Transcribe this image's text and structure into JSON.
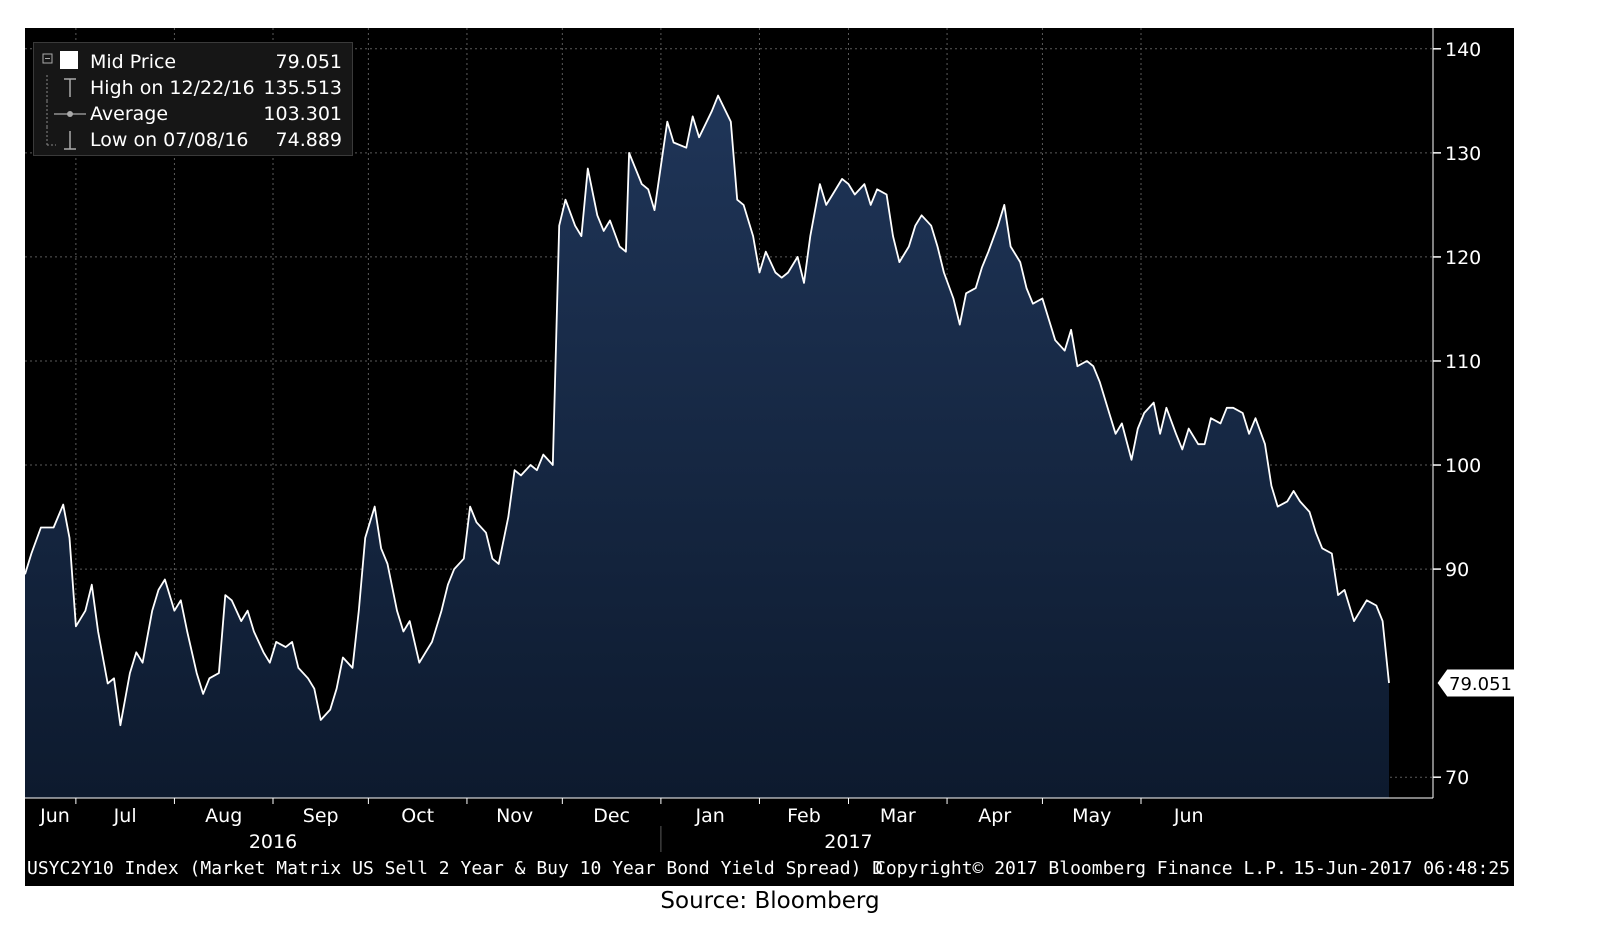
{
  "legend": {
    "items": [
      {
        "label": "Mid Price",
        "value": "79.051"
      },
      {
        "label": "High on 12/22/16",
        "value": "135.513"
      },
      {
        "label": "Average",
        "value": "103.301"
      },
      {
        "label": "Low on 07/08/16",
        "value": "74.889"
      }
    ]
  },
  "last_price_tag": "79.051",
  "footer": {
    "index_label": "USYC2Y10 Index (Market Matrix US Sell 2 Year & Buy 10 Year Bond Yield Spread)  D",
    "copyright": "Copyright© 2017 Bloomberg Finance L.P.",
    "timestamp": "15-Jun-2017 06:48:25"
  },
  "source": "Source: Bloomberg",
  "colors": {
    "background": "#000000",
    "area_fill_top": "#1f3558",
    "area_fill_bottom": "#0d1a2e",
    "line": "#ffffff",
    "grid": "#5a5a5a",
    "axis_text": "#ffffff"
  },
  "chart_data": {
    "type": "area",
    "title": "",
    "xlabel": "",
    "ylabel": "",
    "ylim": [
      68,
      142
    ],
    "y_ticks": [
      70,
      90,
      100,
      110,
      120,
      130,
      140
    ],
    "y_axis_side": "right",
    "grid": true,
    "months": [
      {
        "label": "Jun",
        "date": "2016-06-01"
      },
      {
        "label": "Jul",
        "date": "2016-07-01"
      },
      {
        "label": "Aug",
        "date": "2016-08-01"
      },
      {
        "label": "Sep",
        "date": "2016-09-01"
      },
      {
        "label": "Oct",
        "date": "2016-10-01"
      },
      {
        "label": "Nov",
        "date": "2016-11-01"
      },
      {
        "label": "Dec",
        "date": "2016-12-01"
      },
      {
        "label": "Jan",
        "date": "2017-01-01"
      },
      {
        "label": "Feb",
        "date": "2017-02-01"
      },
      {
        "label": "Mar",
        "date": "2017-03-01"
      },
      {
        "label": "Apr",
        "date": "2017-04-01"
      },
      {
        "label": "May",
        "date": "2017-05-01"
      },
      {
        "label": "Jun",
        "date": "2017-06-01"
      }
    ],
    "years": [
      {
        "label": "2016",
        "date": "2016-09-01"
      },
      {
        "label": "2017",
        "date": "2017-03-01"
      }
    ],
    "series": [
      {
        "points": [
          [
            "2016-06-15",
            89.5
          ],
          [
            "2016-06-17",
            91.5
          ],
          [
            "2016-06-20",
            94.0
          ],
          [
            "2016-06-22",
            94.0
          ],
          [
            "2016-06-24",
            94.0
          ],
          [
            "2016-06-27",
            96.2
          ],
          [
            "2016-06-29",
            93.0
          ],
          [
            "2016-07-01",
            84.5
          ],
          [
            "2016-07-04",
            86.0
          ],
          [
            "2016-07-06",
            88.5
          ],
          [
            "2016-07-08",
            84.0
          ],
          [
            "2016-07-11",
            79.0
          ],
          [
            "2016-07-13",
            79.5
          ],
          [
            "2016-07-15",
            75.0
          ],
          [
            "2016-07-18",
            80.0
          ],
          [
            "2016-07-20",
            82.0
          ],
          [
            "2016-07-22",
            81.0
          ],
          [
            "2016-07-25",
            86.0
          ],
          [
            "2016-07-27",
            88.0
          ],
          [
            "2016-07-29",
            89.0
          ],
          [
            "2016-08-01",
            86.0
          ],
          [
            "2016-08-03",
            87.0
          ],
          [
            "2016-08-05",
            84.0
          ],
          [
            "2016-08-08",
            80.0
          ],
          [
            "2016-08-10",
            78.0
          ],
          [
            "2016-08-12",
            79.5
          ],
          [
            "2016-08-15",
            80.0
          ],
          [
            "2016-08-17",
            87.5
          ],
          [
            "2016-08-19",
            87.0
          ],
          [
            "2016-08-22",
            85.0
          ],
          [
            "2016-08-24",
            86.0
          ],
          [
            "2016-08-26",
            84.0
          ],
          [
            "2016-08-29",
            82.0
          ],
          [
            "2016-08-31",
            81.0
          ],
          [
            "2016-09-02",
            83.0
          ],
          [
            "2016-09-05",
            82.5
          ],
          [
            "2016-09-07",
            83.0
          ],
          [
            "2016-09-09",
            80.5
          ],
          [
            "2016-09-12",
            79.5
          ],
          [
            "2016-09-14",
            78.5
          ],
          [
            "2016-09-16",
            75.5
          ],
          [
            "2016-09-19",
            76.5
          ],
          [
            "2016-09-21",
            78.5
          ],
          [
            "2016-09-23",
            81.5
          ],
          [
            "2016-09-26",
            80.5
          ],
          [
            "2016-09-28",
            86.0
          ],
          [
            "2016-09-30",
            93.0
          ],
          [
            "2016-10-03",
            96.0
          ],
          [
            "2016-10-05",
            92.0
          ],
          [
            "2016-10-07",
            90.5
          ],
          [
            "2016-10-10",
            86.0
          ],
          [
            "2016-10-12",
            84.0
          ],
          [
            "2016-10-14",
            85.0
          ],
          [
            "2016-10-17",
            81.0
          ],
          [
            "2016-10-19",
            82.0
          ],
          [
            "2016-10-21",
            83.0
          ],
          [
            "2016-10-24",
            86.0
          ],
          [
            "2016-10-26",
            88.5
          ],
          [
            "2016-10-28",
            90.0
          ],
          [
            "2016-10-31",
            91.0
          ],
          [
            "2016-11-02",
            96.0
          ],
          [
            "2016-11-04",
            94.5
          ],
          [
            "2016-11-07",
            93.5
          ],
          [
            "2016-11-09",
            91.0
          ],
          [
            "2016-11-11",
            90.5
          ],
          [
            "2016-11-14",
            95.0
          ],
          [
            "2016-11-16",
            99.5
          ],
          [
            "2016-11-18",
            99.0
          ],
          [
            "2016-11-21",
            100.0
          ],
          [
            "2016-11-23",
            99.5
          ],
          [
            "2016-11-25",
            101.0
          ],
          [
            "2016-11-28",
            100.0
          ],
          [
            "2016-11-30",
            123.0
          ],
          [
            "2016-12-02",
            125.5
          ],
          [
            "2016-12-05",
            123.0
          ],
          [
            "2016-12-07",
            122.0
          ],
          [
            "2016-12-09",
            128.5
          ],
          [
            "2016-12-12",
            124.0
          ],
          [
            "2016-12-14",
            122.5
          ],
          [
            "2016-12-16",
            123.5
          ],
          [
            "2016-12-19",
            121.0
          ],
          [
            "2016-12-21",
            120.5
          ],
          [
            "2016-12-22",
            130.0
          ],
          [
            "2016-12-26",
            127.0
          ],
          [
            "2016-12-28",
            126.5
          ],
          [
            "2016-12-30",
            124.5
          ],
          [
            "2017-01-03",
            133.0
          ],
          [
            "2017-01-05",
            131.0
          ],
          [
            "2017-01-09",
            130.5
          ],
          [
            "2017-01-11",
            133.5
          ],
          [
            "2017-01-13",
            131.5
          ],
          [
            "2017-01-17",
            134.0
          ],
          [
            "2017-01-19",
            135.5
          ],
          [
            "2017-01-23",
            133.0
          ],
          [
            "2017-01-25",
            125.5
          ],
          [
            "2017-01-27",
            125.0
          ],
          [
            "2017-01-30",
            122.0
          ],
          [
            "2017-02-01",
            118.5
          ],
          [
            "2017-02-03",
            120.5
          ],
          [
            "2017-02-06",
            118.5
          ],
          [
            "2017-02-08",
            118.0
          ],
          [
            "2017-02-10",
            118.5
          ],
          [
            "2017-02-13",
            120.0
          ],
          [
            "2017-02-15",
            117.5
          ],
          [
            "2017-02-17",
            122.0
          ],
          [
            "2017-02-20",
            127.0
          ],
          [
            "2017-02-22",
            125.0
          ],
          [
            "2017-02-24",
            126.0
          ],
          [
            "2017-02-27",
            127.5
          ],
          [
            "2017-03-01",
            127.0
          ],
          [
            "2017-03-03",
            126.0
          ],
          [
            "2017-03-06",
            127.0
          ],
          [
            "2017-03-08",
            125.0
          ],
          [
            "2017-03-10",
            126.5
          ],
          [
            "2017-03-13",
            126.0
          ],
          [
            "2017-03-15",
            122.0
          ],
          [
            "2017-03-17",
            119.5
          ],
          [
            "2017-03-20",
            121.0
          ],
          [
            "2017-03-22",
            123.0
          ],
          [
            "2017-03-24",
            124.0
          ],
          [
            "2017-03-27",
            123.0
          ],
          [
            "2017-03-29",
            121.0
          ],
          [
            "2017-03-31",
            118.5
          ],
          [
            "2017-04-03",
            116.0
          ],
          [
            "2017-04-05",
            113.5
          ],
          [
            "2017-04-07",
            116.5
          ],
          [
            "2017-04-10",
            117.0
          ],
          [
            "2017-04-12",
            119.0
          ],
          [
            "2017-04-14",
            120.5
          ],
          [
            "2017-04-17",
            123.0
          ],
          [
            "2017-04-19",
            125.0
          ],
          [
            "2017-04-21",
            121.0
          ],
          [
            "2017-04-24",
            119.5
          ],
          [
            "2017-04-26",
            117.0
          ],
          [
            "2017-04-28",
            115.5
          ],
          [
            "2017-05-01",
            116.0
          ],
          [
            "2017-05-03",
            114.0
          ],
          [
            "2017-05-05",
            112.0
          ],
          [
            "2017-05-08",
            111.0
          ],
          [
            "2017-05-10",
            113.0
          ],
          [
            "2017-05-12",
            109.5
          ],
          [
            "2017-05-15",
            110.0
          ],
          [
            "2017-05-17",
            109.5
          ],
          [
            "2017-05-19",
            108.0
          ],
          [
            "2017-05-22",
            105.0
          ],
          [
            "2017-05-24",
            103.0
          ],
          [
            "2017-05-26",
            104.0
          ],
          [
            "2017-05-29",
            100.5
          ],
          [
            "2017-05-31",
            103.5
          ],
          [
            "2017-06-02",
            105.0
          ],
          [
            "2017-06-05",
            106.0
          ],
          [
            "2017-06-07",
            103.0
          ],
          [
            "2017-06-09",
            105.5
          ],
          [
            "2017-06-12",
            103.0
          ],
          [
            "2017-06-14",
            101.5
          ],
          [
            "2017-06-16",
            103.5
          ],
          [
            "2017-06-19",
            102.0
          ],
          [
            "2017-06-21",
            102.0
          ],
          [
            "2017-06-23",
            104.5
          ],
          [
            "2017-06-26",
            104.0
          ],
          [
            "2017-06-28",
            105.5
          ],
          [
            "2017-06-30",
            105.5
          ],
          [
            "2017-07-03",
            105.0
          ],
          [
            "2017-07-05",
            103.0
          ],
          [
            "2017-07-07",
            104.5
          ],
          [
            "2017-07-10",
            102.0
          ],
          [
            "2017-07-12",
            98.0
          ],
          [
            "2017-07-14",
            96.0
          ],
          [
            "2017-07-17",
            96.5
          ],
          [
            "2017-07-19",
            97.5
          ],
          [
            "2017-07-21",
            96.5
          ],
          [
            "2017-07-24",
            95.5
          ],
          [
            "2017-07-26",
            93.5
          ],
          [
            "2017-07-28",
            92.0
          ],
          [
            "2017-07-31",
            91.5
          ],
          [
            "2017-08-02",
            87.5
          ],
          [
            "2017-08-04",
            88.0
          ],
          [
            "2017-08-07",
            85.0
          ],
          [
            "2017-08-09",
            86.0
          ],
          [
            "2017-08-11",
            87.0
          ],
          [
            "2017-08-14",
            86.5
          ],
          [
            "2017-08-16",
            85.0
          ],
          [
            "2017-08-18",
            79.051
          ]
        ]
      }
    ]
  }
}
